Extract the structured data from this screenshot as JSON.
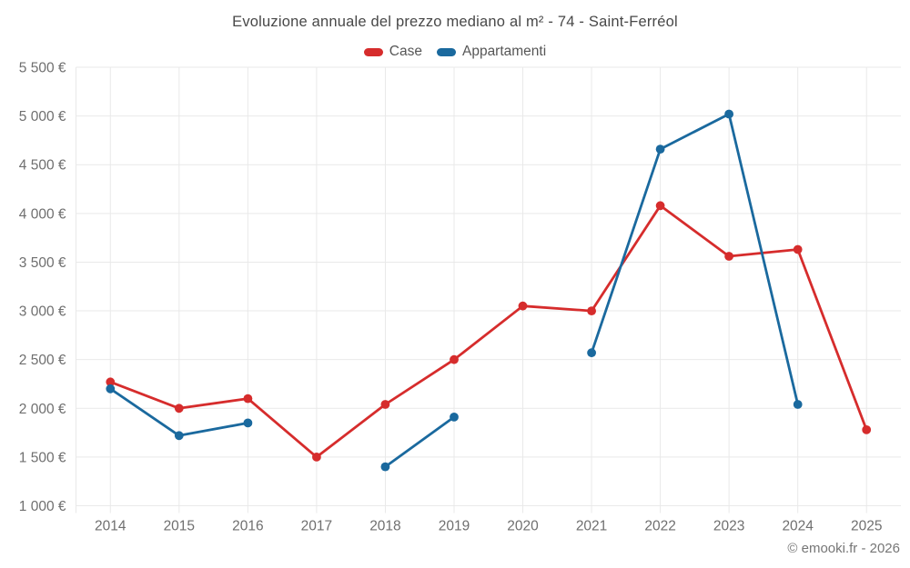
{
  "page": {
    "background": "#ffffff"
  },
  "chart": {
    "title": "Evoluzione annuale del prezzo mediano al m² - 74 - Saint-Ferréol",
    "footer": "© emooki.fr - 2026",
    "legend": [
      {
        "label": "Case",
        "color": "#d62c2c"
      },
      {
        "label": "Appartamenti",
        "color": "#1a699e"
      }
    ]
  },
  "chart_data": {
    "type": "line",
    "title": "Evoluzione annuale del prezzo mediano al m² - 74 - Saint-Ferréol",
    "categories": [
      "2014",
      "2015",
      "2016",
      "2017",
      "2018",
      "2019",
      "2020",
      "2021",
      "2022",
      "2023",
      "2024",
      "2025"
    ],
    "series": [
      {
        "name": "Case",
        "color": "#d62c2c",
        "values": [
          2270,
          2000,
          2100,
          1500,
          2040,
          2500,
          3050,
          3000,
          4080,
          3560,
          3630,
          1780
        ]
      },
      {
        "name": "Appartamenti",
        "color": "#1a699e",
        "values": [
          2200,
          1720,
          1850,
          null,
          1400,
          1910,
          null,
          2570,
          4660,
          5020,
          2040,
          null
        ]
      }
    ],
    "xlabel": "",
    "ylabel": "",
    "ylim": [
      1000,
      5500
    ],
    "y_tick_step": 500,
    "y_tick_labels": [
      "1 000 €",
      "1 500 €",
      "2 000 €",
      "2 500 €",
      "3 000 €",
      "3 500 €",
      "4 000 €",
      "4 500 €",
      "5 000 €",
      "5 500 €"
    ],
    "grid": true,
    "legend_position": "top",
    "marker": "circle",
    "annotations": [
      "© emooki.fr - 2026"
    ],
    "colors": {
      "gridline": "#e9e9e9",
      "tick_label": "#6f6f6f",
      "title": "#484848",
      "footer": "#767676"
    }
  }
}
